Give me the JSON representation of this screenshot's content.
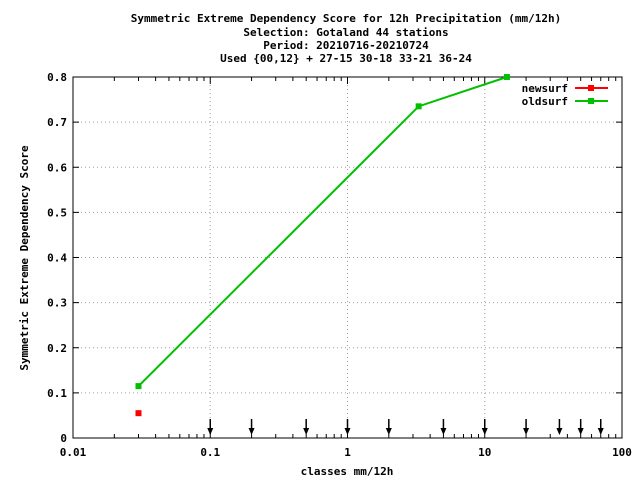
{
  "chart_data": {
    "type": "line",
    "title_lines": [
      "Symmetric Extreme Dependency Score  for 12h Precipitation (mm/12h)",
      "Selection: Gotaland     44 stations",
      "Period: 20210716-20210724",
      "Used {00,12} + 27-15 30-18 33-21 36-24"
    ],
    "xlabel": "classes mm/12h",
    "ylabel": "Symmetric Extreme Dependency Score",
    "x_scale": "log",
    "xlim": [
      0.01,
      100
    ],
    "ylim": [
      0,
      0.8
    ],
    "x_ticks": [
      {
        "value": 0.01,
        "label": "0.01"
      },
      {
        "value": 0.1,
        "label": "0.1"
      },
      {
        "value": 1,
        "label": "1"
      },
      {
        "value": 10,
        "label": "10"
      },
      {
        "value": 100,
        "label": "100"
      }
    ],
    "y_ticks": [
      {
        "value": 0,
        "label": "0"
      },
      {
        "value": 0.1,
        "label": "0.1"
      },
      {
        "value": 0.2,
        "label": "0.2"
      },
      {
        "value": 0.3,
        "label": "0.3"
      },
      {
        "value": 0.4,
        "label": "0.4"
      },
      {
        "value": 0.5,
        "label": "0.5"
      },
      {
        "value": 0.6,
        "label": "0.6"
      },
      {
        "value": 0.7,
        "label": "0.7"
      },
      {
        "value": 0.8,
        "label": "0.8"
      }
    ],
    "grid": true,
    "legend_position": "top-right",
    "series": [
      {
        "name": "newsurf",
        "color": "#ff0000",
        "x": [
          0.03
        ],
        "y": [
          0.055
        ]
      },
      {
        "name": "oldsurf",
        "color": "#00c000",
        "x": [
          0.03,
          3.3,
          14.5
        ],
        "y": [
          0.115,
          0.735,
          0.8
        ]
      }
    ],
    "class_markers": [
      0.1,
      0.2,
      0.5,
      1,
      2,
      5,
      10,
      20,
      35,
      50,
      70
    ]
  }
}
